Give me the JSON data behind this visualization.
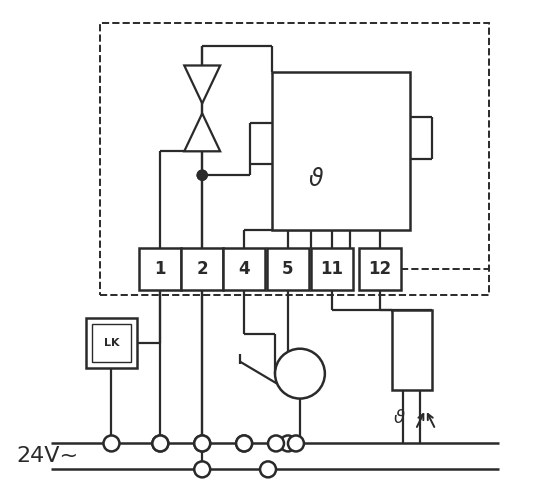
{
  "bg_color": "#ffffff",
  "line_color": "#2a2a2a",
  "figsize": [
    5.55,
    4.94
  ],
  "dpi": 100,
  "label_24V": "24V~",
  "terminal_labels": [
    "1",
    "2",
    "4",
    "5",
    "11",
    "12"
  ]
}
